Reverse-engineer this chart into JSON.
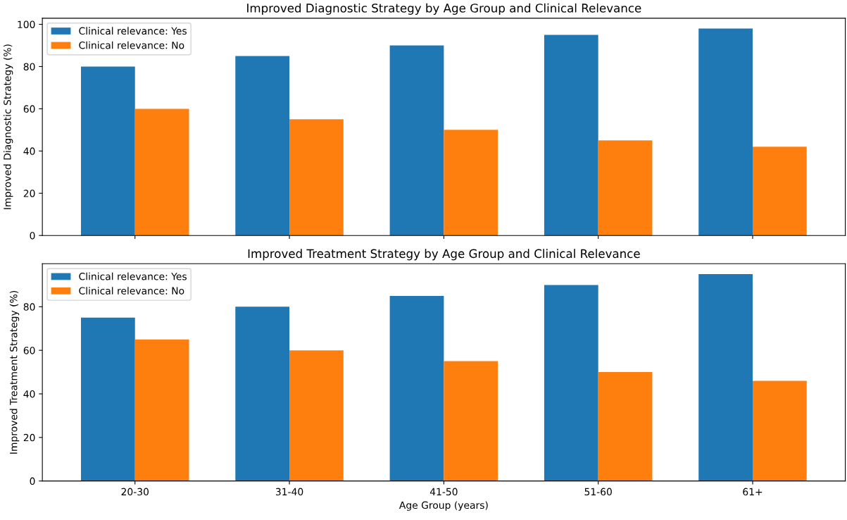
{
  "chart_data": [
    {
      "type": "bar",
      "title": "Improved Diagnostic Strategy by Age Group and Clinical Relevance",
      "ylabel": "Improved Diagnostic Strategy (%)",
      "categories": [
        null,
        null,
        null,
        null,
        null
      ],
      "series": [
        {
          "name": "Clinical relevance: Yes",
          "color": "#1f77b4",
          "values": [
            80,
            85,
            90,
            95,
            98
          ]
        },
        {
          "name": "Clinical relevance: No",
          "color": "#ff7f0e",
          "values": [
            60,
            55,
            50,
            45,
            42
          ]
        }
      ],
      "ylim": [
        0,
        102.9
      ],
      "yticks": [
        0,
        20,
        40,
        60,
        80,
        100
      ],
      "tick_labels": "y",
      "legend": "top left",
      "grid": false
    },
    {
      "type": "bar",
      "title": "Improved Treatment Strategy by Age Group and Clinical Relevance",
      "ylabel": "Improved Treatment Strategy (%)",
      "xlabel": "Age Group (years)",
      "categories": [
        "20-30",
        "31-40",
        "41-50",
        "51-60",
        "61+"
      ],
      "series": [
        {
          "name": "Clinical relevance: Yes",
          "color": "#1f77b4",
          "values": [
            75,
            80,
            85,
            90,
            95
          ]
        },
        {
          "name": "Clinical relevance: No",
          "color": "#ff7f0e",
          "values": [
            65,
            60,
            55,
            50,
            46
          ]
        }
      ],
      "ylim": [
        0,
        99.75
      ],
      "yticks": [
        0,
        20,
        40,
        60,
        80
      ],
      "legend": "top left",
      "grid": false
    }
  ]
}
